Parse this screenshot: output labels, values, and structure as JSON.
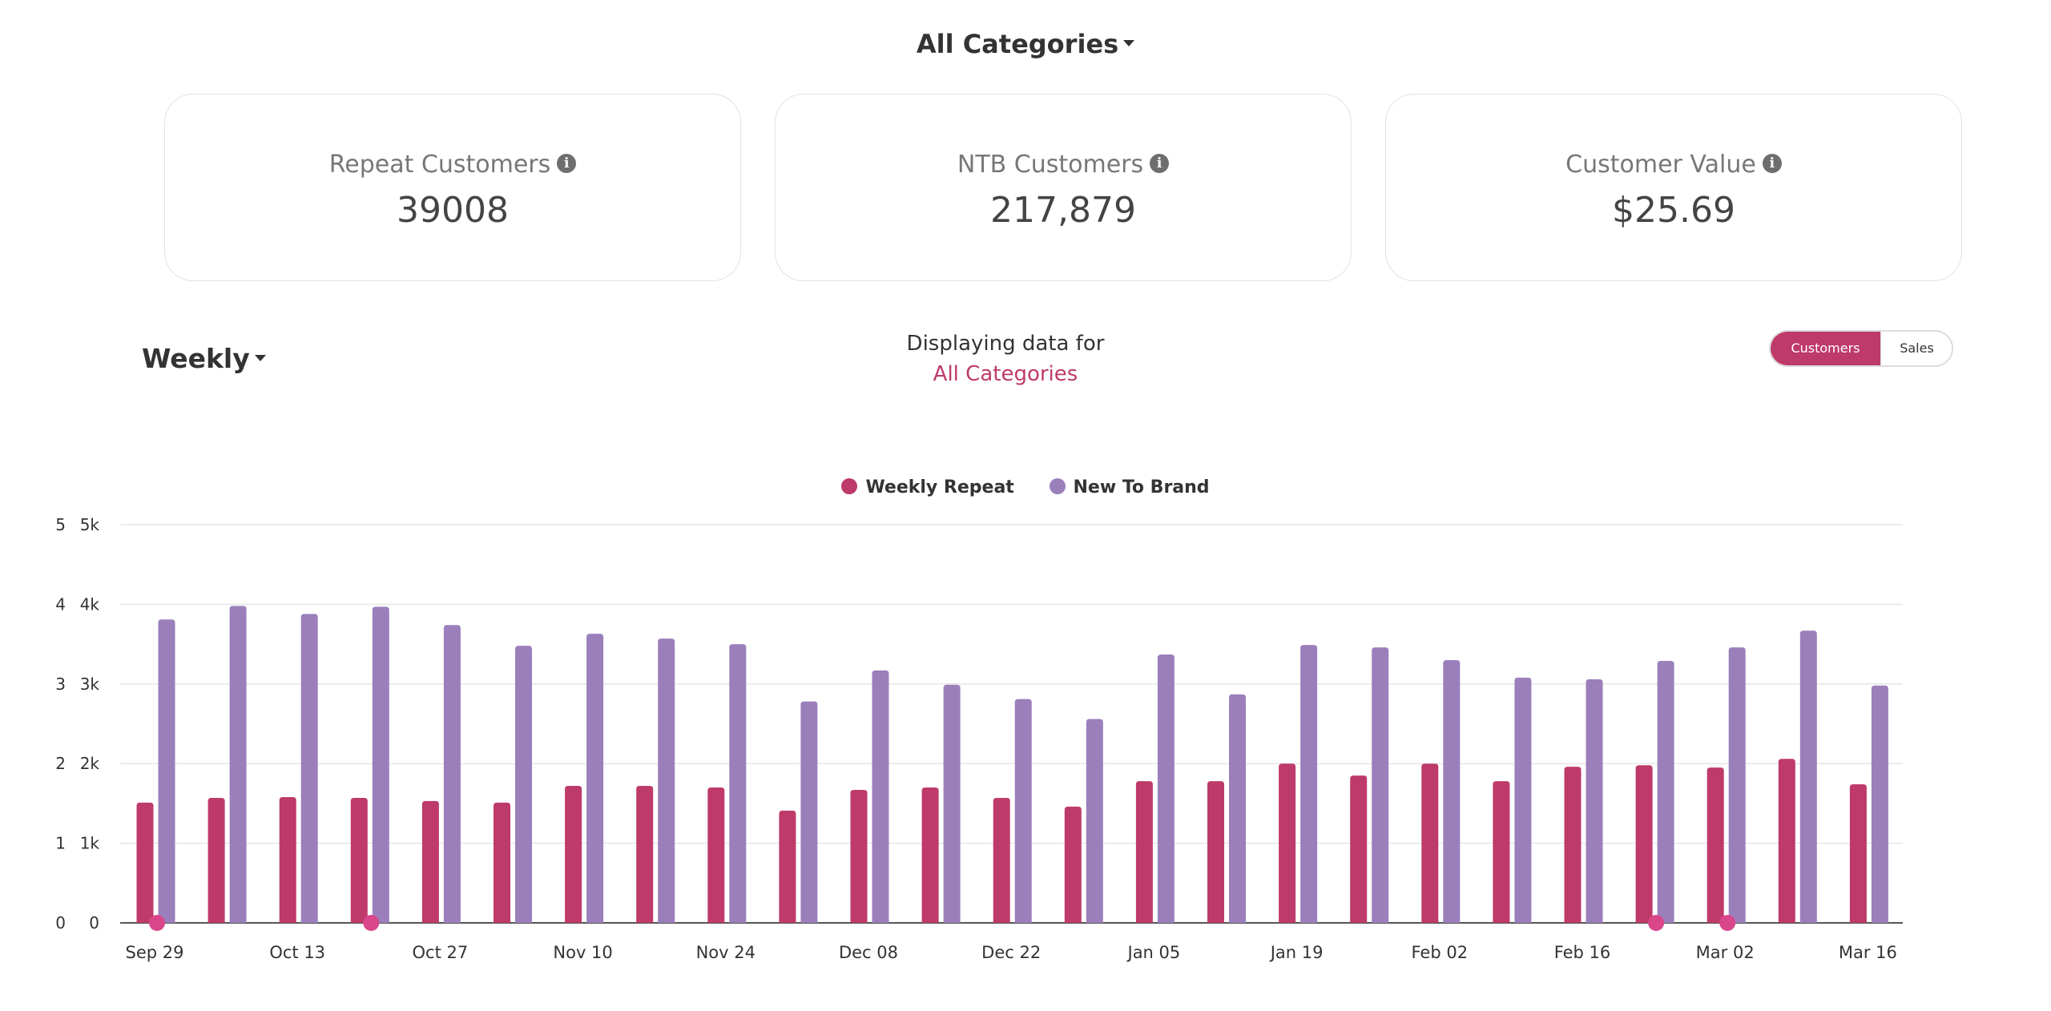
{
  "header": {
    "category_label": "All Categories"
  },
  "cards": [
    {
      "title": "Repeat Customers",
      "value": "39008"
    },
    {
      "title": "NTB Customers",
      "value": "217,879"
    },
    {
      "title": "Customer Value",
      "value": "$25.69"
    }
  ],
  "controls": {
    "period_label": "Weekly",
    "displaying_text": "Displaying data for",
    "displaying_category": "All Categories",
    "toggle_customers": "Customers",
    "toggle_sales": "Sales"
  },
  "colors": {
    "repeat": "#be3a6a",
    "ntb": "#9b7fbb",
    "accent": "#be3a6a",
    "marker": "#d9478a"
  },
  "icons": {
    "info": "info-circle-icon",
    "caret": "caret-down-icon"
  },
  "chart_data": {
    "type": "bar",
    "legend_position": "top-center",
    "grid": true,
    "series": [
      {
        "name": "Weekly Repeat",
        "values": [
          1510,
          1570,
          1580,
          1570,
          1530,
          1510,
          1720,
          1720,
          1700,
          1410,
          1670,
          1700,
          1570,
          1460,
          1780,
          1780,
          2000,
          1850,
          2000,
          1780,
          1960,
          1980,
          1950,
          2060,
          1740
        ]
      },
      {
        "name": "New To Brand",
        "values": [
          3810,
          3980,
          3880,
          3970,
          3740,
          3480,
          3630,
          3570,
          3500,
          2780,
          3170,
          2990,
          2810,
          2560,
          3370,
          2870,
          3490,
          3460,
          3300,
          3080,
          3060,
          3290,
          3460,
          3670,
          2980
        ]
      }
    ],
    "x_tick_labels": [
      "Sep 29",
      "Oct 13",
      "Oct 27",
      "Nov 10",
      "Nov 24",
      "Dec 08",
      "Dec 22",
      "Jan 05",
      "Jan 19",
      "Feb 02",
      "Feb 16",
      "Mar 02",
      "Mar 16"
    ],
    "y_left_ticks": [
      "0",
      "1",
      "2",
      "3",
      "4",
      "5"
    ],
    "y_right_ticks": [
      "0",
      "1k",
      "2k",
      "3k",
      "4k",
      "5k"
    ],
    "ylim": [
      0,
      5000
    ],
    "markers": {
      "series_name": "Weekly Repeat",
      "week_indices": [
        0,
        3,
        21,
        22
      ],
      "values": [
        0,
        0,
        0,
        0
      ]
    }
  }
}
